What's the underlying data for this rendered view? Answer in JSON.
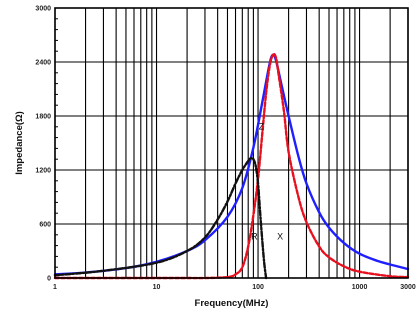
{
  "chart_data": {
    "type": "line",
    "xlabel": "Frequency(MHz)",
    "ylabel": "Impedance(Ω)",
    "x_scale": "log",
    "xlim": [
      1,
      3000
    ],
    "ylim": [
      0,
      3000
    ],
    "x_ticks": [
      1,
      10,
      100,
      1000,
      3000
    ],
    "x_tick_labels": [
      "1",
      "10",
      "100",
      "1000",
      "3000"
    ],
    "y_ticks": [
      0,
      600,
      1200,
      1800,
      2400,
      3000
    ],
    "y_tick_labels": [
      "0",
      "600",
      "1200",
      "1800",
      "2400",
      "3000"
    ],
    "grid": true,
    "series": [
      {
        "name": "Z",
        "color": "#1f1fff",
        "style": "solid",
        "x": [
          1,
          2,
          5,
          10,
          20,
          30,
          50,
          70,
          90,
          110,
          130,
          140,
          150,
          170,
          200,
          250,
          300,
          400,
          500,
          700,
          1000,
          1500,
          2000,
          3000
        ],
        "y": [
          40,
          60,
          110,
          180,
          300,
          420,
          680,
          1000,
          1450,
          1950,
          2380,
          2480,
          2420,
          2150,
          1800,
          1350,
          1050,
          730,
          560,
          390,
          270,
          190,
          150,
          100
        ]
      },
      {
        "name": "R",
        "color": "#e8101e",
        "style": "dashed",
        "x": [
          1,
          5,
          10,
          20,
          30,
          50,
          60,
          70,
          80,
          90,
          100,
          110,
          120,
          130,
          140,
          150,
          160,
          180,
          200,
          250,
          300,
          400,
          500,
          700,
          1000,
          2000,
          3000
        ],
        "y": [
          0,
          0,
          0,
          0,
          0,
          10,
          40,
          120,
          350,
          700,
          1100,
          1600,
          2050,
          2350,
          2480,
          2450,
          2250,
          1850,
          1400,
          900,
          620,
          350,
          230,
          130,
          70,
          20,
          10
        ],
        "label": "R"
      },
      {
        "name": "X",
        "color": "#111111",
        "style": "dashdot",
        "x": [
          1,
          3,
          10,
          20,
          30,
          40,
          50,
          60,
          70,
          80,
          85,
          90,
          95,
          100,
          105,
          110,
          115,
          120
        ],
        "y": [
          30,
          80,
          170,
          300,
          450,
          650,
          850,
          1050,
          1200,
          1300,
          1330,
          1320,
          1240,
          1050,
          720,
          420,
          170,
          0
        ]
      }
    ],
    "annotations": [
      "Z",
      "R",
      "X"
    ]
  }
}
